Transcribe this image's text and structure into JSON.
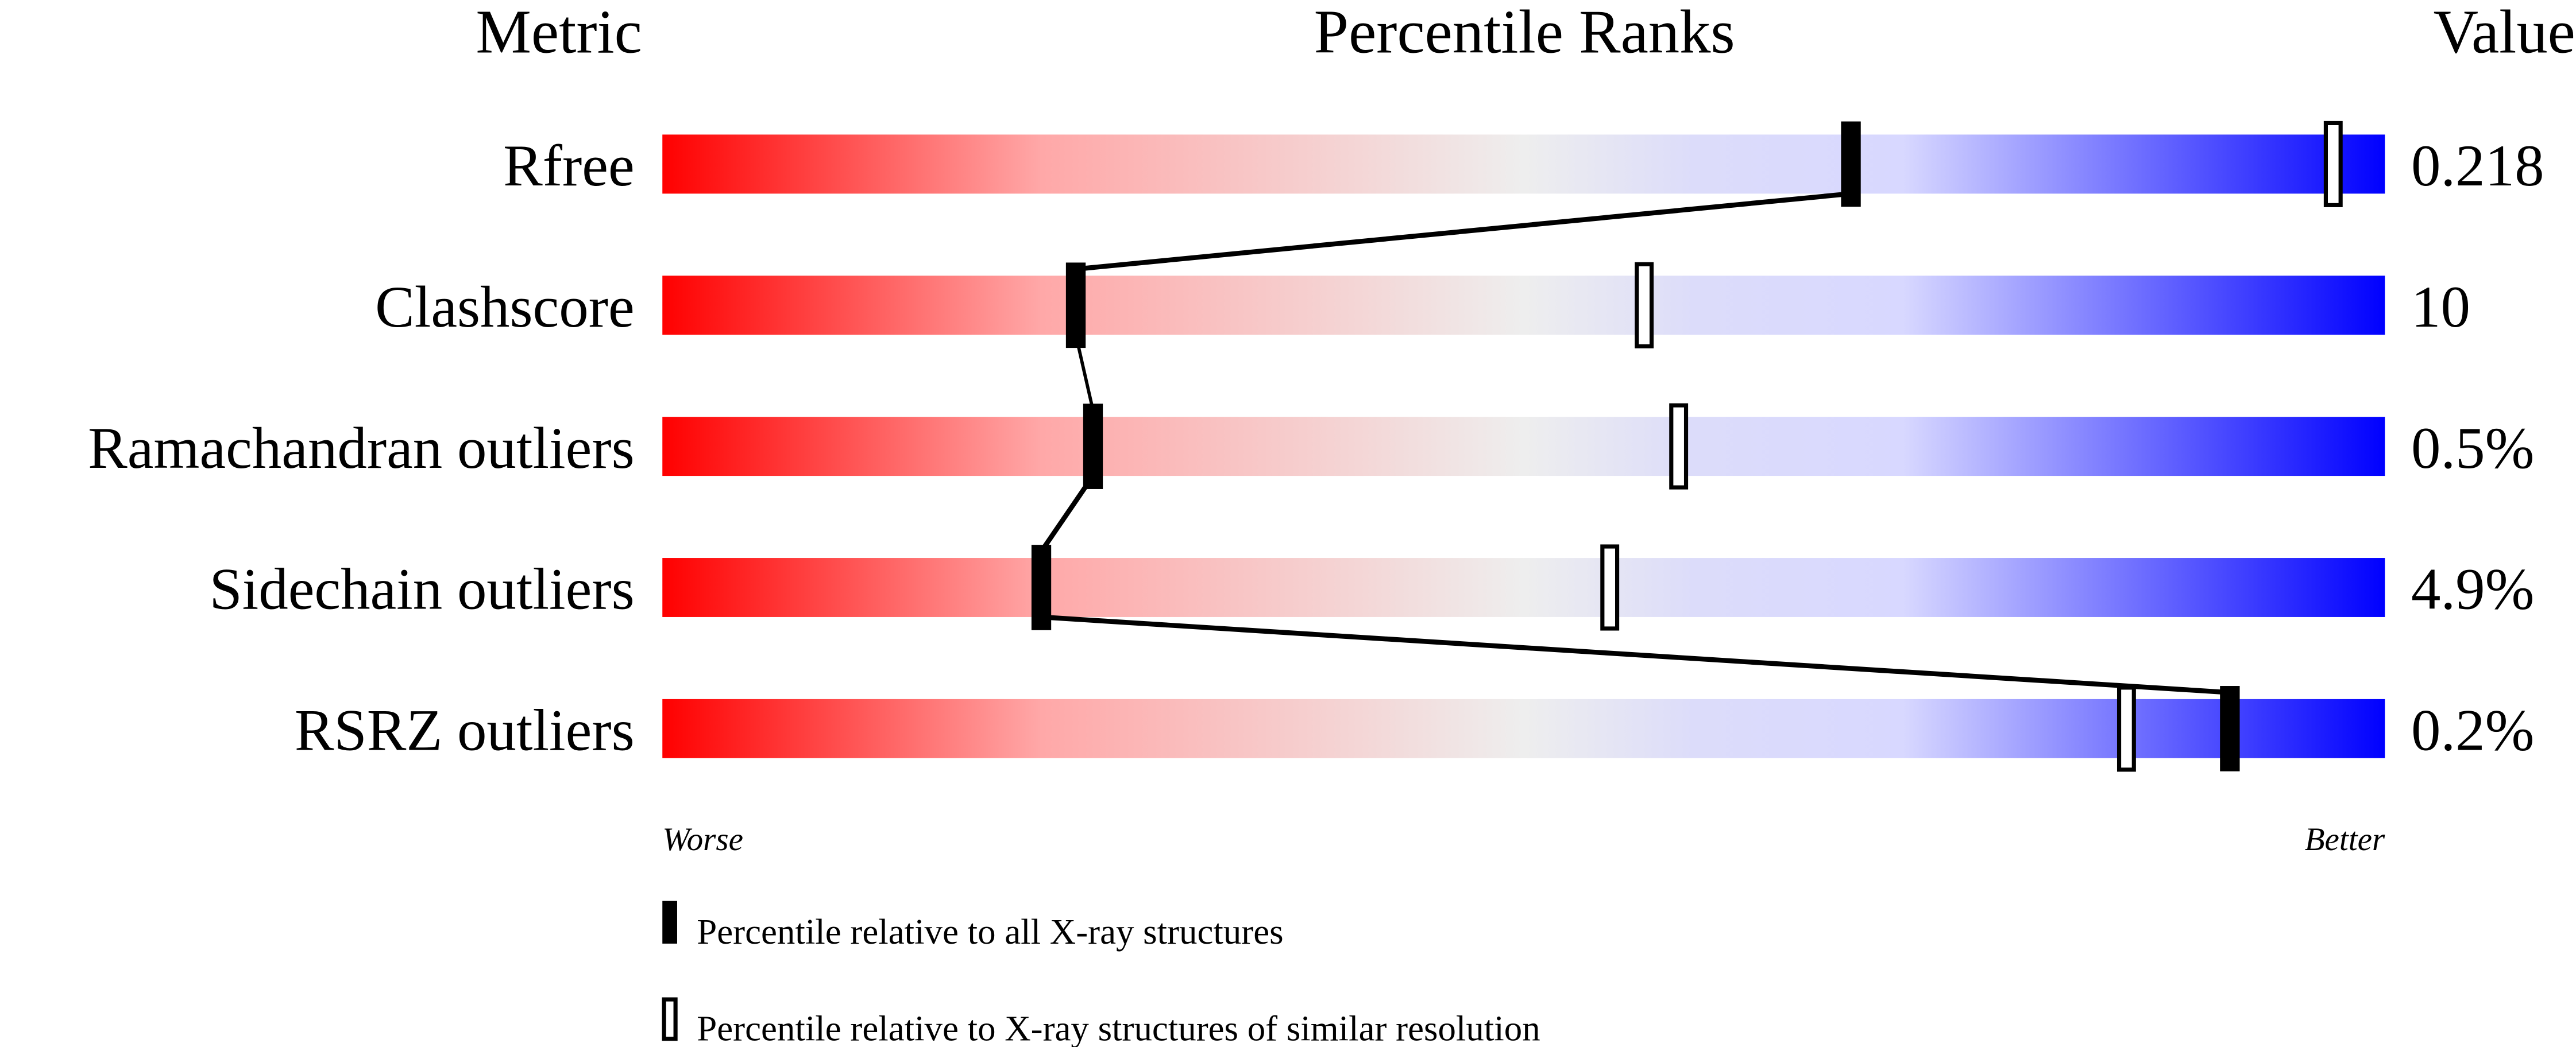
{
  "chart_data": {
    "type": "percentile-slider",
    "headers": {
      "metric": "Metric",
      "ranks": "Percentile Ranks",
      "value": "Value"
    },
    "xlim": [
      0,
      100
    ],
    "metrics": [
      {
        "name": "Rfree",
        "value": "0.218",
        "percentile_all": 69,
        "percentile_similar": 97
      },
      {
        "name": "Clashscore",
        "value": "10",
        "percentile_all": 24,
        "percentile_similar": 57
      },
      {
        "name": "Ramachandran outliers",
        "value": "0.5%",
        "percentile_all": 25,
        "percentile_similar": 59
      },
      {
        "name": "Sidechain outliers",
        "value": "4.9%",
        "percentile_all": 22,
        "percentile_similar": 55
      },
      {
        "name": "RSRZ outliers",
        "value": "0.2%",
        "percentile_all": 91,
        "percentile_similar": 85
      }
    ],
    "axis_labels": {
      "worse": "Worse",
      "better": "Better"
    },
    "legend": {
      "all": "Percentile relative to all X-ray structures",
      "similar": "Percentile relative to X-ray structures of similar resolution"
    },
    "colors": {
      "worse": "#ff0000",
      "middle": "#eeeeee",
      "better": "#0000ff"
    }
  }
}
